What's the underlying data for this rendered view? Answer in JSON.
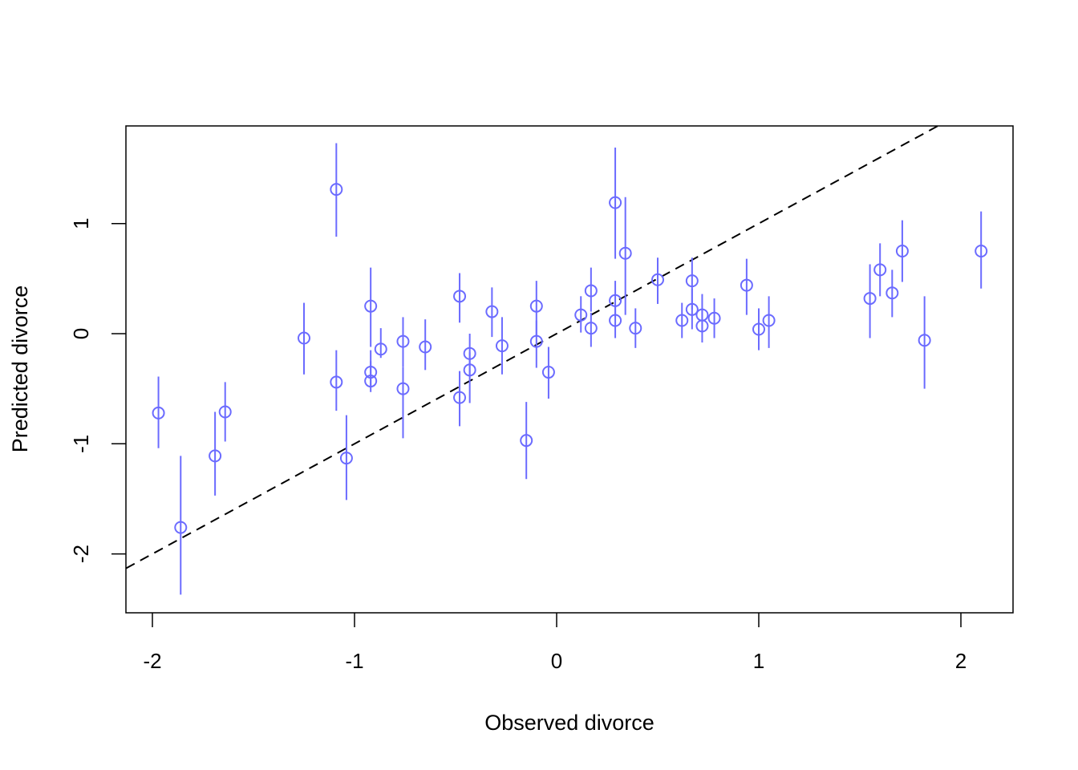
{
  "chart_data": {
    "type": "scatter",
    "title": "",
    "xlabel": "Observed divorce",
    "ylabel": "Predicted divorce",
    "xlim": [
      -2.13,
      2.26
    ],
    "ylim": [
      -2.53,
      1.89
    ],
    "x_ticks": [
      -2,
      -1,
      0,
      1,
      2
    ],
    "y_ticks": [
      -2,
      -1,
      0,
      1
    ],
    "x_tick_labels": [
      "-2",
      "-1",
      "0",
      "1",
      "2"
    ],
    "y_tick_labels": [
      "-2",
      "-1",
      "0",
      "1"
    ],
    "grid": false,
    "point_color": "#6b6bff",
    "reference_line": {
      "intercept": 0,
      "slope": 1,
      "style": "dashed",
      "color": "#000000"
    },
    "points_fields": [
      "observed",
      "predicted",
      "lower",
      "upper"
    ],
    "points": [
      [
        -1.97,
        -0.72,
        -1.04,
        -0.39
      ],
      [
        -1.86,
        -1.76,
        -2.37,
        -1.11
      ],
      [
        -1.69,
        -1.11,
        -1.47,
        -0.71
      ],
      [
        -1.64,
        -0.71,
        -0.98,
        -0.44
      ],
      [
        -1.25,
        -0.04,
        -0.37,
        0.28
      ],
      [
        -1.09,
        1.31,
        0.88,
        1.73
      ],
      [
        -1.09,
        -0.44,
        -0.7,
        -0.15
      ],
      [
        -1.04,
        -1.13,
        -1.51,
        -0.74
      ],
      [
        -0.92,
        0.25,
        -0.12,
        0.6
      ],
      [
        -0.92,
        -0.35,
        -0.47,
        -0.15
      ],
      [
        -0.92,
        -0.43,
        -0.53,
        -0.25
      ],
      [
        -0.87,
        -0.14,
        -0.22,
        0.05
      ],
      [
        -0.76,
        -0.07,
        -0.3,
        0.15
      ],
      [
        -0.76,
        -0.5,
        -0.95,
        -0.3
      ],
      [
        -0.65,
        -0.12,
        -0.33,
        0.13
      ],
      [
        -0.48,
        0.34,
        0.1,
        0.55
      ],
      [
        -0.48,
        -0.58,
        -0.84,
        -0.34
      ],
      [
        -0.43,
        -0.18,
        -0.39,
        0.0
      ],
      [
        -0.43,
        -0.33,
        -0.63,
        -0.17
      ],
      [
        -0.32,
        0.2,
        -0.03,
        0.42
      ],
      [
        -0.27,
        -0.11,
        -0.37,
        0.15
      ],
      [
        -0.15,
        -0.97,
        -1.32,
        -0.62
      ],
      [
        -0.1,
        0.25,
        -0.03,
        0.48
      ],
      [
        -0.1,
        -0.07,
        -0.31,
        0.12
      ],
      [
        -0.04,
        -0.35,
        -0.59,
        -0.12
      ],
      [
        0.12,
        0.17,
        0.01,
        0.34
      ],
      [
        0.17,
        0.39,
        0.2,
        0.6
      ],
      [
        0.17,
        0.05,
        -0.12,
        0.19
      ],
      [
        0.29,
        1.19,
        0.68,
        1.69
      ],
      [
        0.29,
        0.3,
        0.15,
        0.48
      ],
      [
        0.29,
        0.12,
        -0.04,
        0.26
      ],
      [
        0.34,
        0.73,
        0.17,
        1.24
      ],
      [
        0.39,
        0.05,
        -0.13,
        0.23
      ],
      [
        0.5,
        0.49,
        0.27,
        0.69
      ],
      [
        0.62,
        0.12,
        -0.04,
        0.28
      ],
      [
        0.67,
        0.48,
        0.22,
        0.69
      ],
      [
        0.67,
        0.22,
        0.04,
        0.41
      ],
      [
        0.72,
        0.17,
        0.01,
        0.36
      ],
      [
        0.72,
        0.07,
        -0.08,
        0.23
      ],
      [
        0.78,
        0.14,
        -0.04,
        0.32
      ],
      [
        0.94,
        0.44,
        0.17,
        0.68
      ],
      [
        1.0,
        0.04,
        -0.15,
        0.23
      ],
      [
        1.05,
        0.12,
        -0.13,
        0.34
      ],
      [
        1.55,
        0.32,
        -0.04,
        0.63
      ],
      [
        1.6,
        0.58,
        0.34,
        0.82
      ],
      [
        1.66,
        0.37,
        0.15,
        0.58
      ],
      [
        1.71,
        0.75,
        0.47,
        1.03
      ],
      [
        1.82,
        -0.06,
        -0.5,
        0.34
      ],
      [
        2.1,
        0.75,
        0.41,
        1.11
      ]
    ]
  }
}
